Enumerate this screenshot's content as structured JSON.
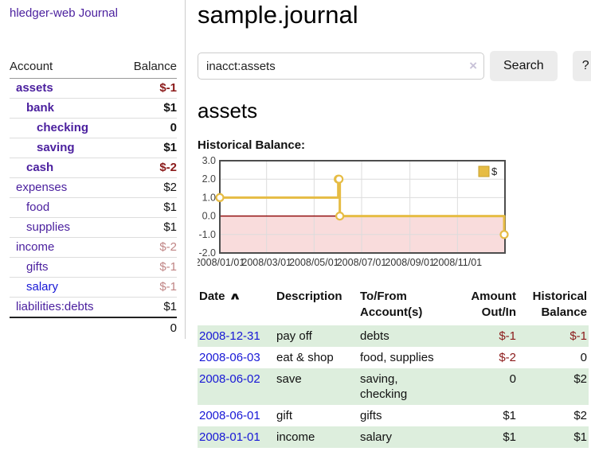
{
  "colors": {
    "accent_purple": "#4a1f9e",
    "link_blue": "#1717d6",
    "negative_strong": "#8b1a1a",
    "negative_light": "#c08585",
    "row_green": "#ddeedd",
    "chart_gold": "#e6bc44",
    "chart_negative_fill": "#f9dcdc",
    "chart_zero_line": "#8b0000",
    "button_grey": "#ececec"
  },
  "app": {
    "brand": "hledger-web"
  },
  "sidebar": {
    "journal_link": "Journal",
    "header": {
      "account": "Account",
      "balance": "Balance"
    },
    "accounts": [
      {
        "name": "assets",
        "balance": "$-1",
        "indent": 0,
        "name_style": "strong",
        "balance_style": "neg-strong"
      },
      {
        "name": "bank",
        "balance": "$1",
        "indent": 1,
        "name_style": "strong",
        "balance_style": "pos-strong"
      },
      {
        "name": "checking",
        "balance": "0",
        "indent": 2,
        "name_style": "strong",
        "balance_style": "pos-strong"
      },
      {
        "name": "saving",
        "balance": "$1",
        "indent": 2,
        "name_style": "strong",
        "balance_style": "pos-strong"
      },
      {
        "name": "cash",
        "balance": "$-2",
        "indent": 1,
        "name_style": "strong",
        "balance_style": "neg-strong"
      },
      {
        "name": "expenses",
        "balance": "$2",
        "indent": 0,
        "name_style": "normal",
        "balance_style": "plain"
      },
      {
        "name": "food",
        "balance": "$1",
        "indent": 1,
        "name_style": "normal",
        "balance_style": "plain"
      },
      {
        "name": "supplies",
        "balance": "$1",
        "indent": 1,
        "name_style": "normal",
        "balance_style": "plain"
      },
      {
        "name": "income",
        "balance": "$-2",
        "indent": 0,
        "name_style": "normal",
        "balance_style": "neg-light"
      },
      {
        "name": "gifts",
        "balance": "$-1",
        "indent": 1,
        "name_style": "normal",
        "balance_style": "neg-light"
      },
      {
        "name": "salary",
        "balance": "$-1",
        "indent": 1,
        "name_style": "blue",
        "balance_style": "neg-light"
      },
      {
        "name": "liabilities:debts",
        "balance": "$1",
        "indent": 0,
        "name_style": "normal",
        "balance_style": "plain"
      }
    ],
    "total": "0"
  },
  "main": {
    "title": "sample.journal",
    "search": {
      "value": "inacct:assets",
      "clear_icon": "×",
      "button_label": "Search",
      "help_label": "?"
    },
    "account_heading": "assets",
    "chart_heading": "Historical Balance:"
  },
  "chart_data": {
    "type": "line",
    "step": true,
    "title": "Historical Balance:",
    "x_range": [
      "2008-01-01",
      "2009-01-01"
    ],
    "x_tick_dates": [
      "2008-01-01",
      "2008-03-01",
      "2008-05-01",
      "2008-07-01",
      "2008-09-01",
      "2008-11-01"
    ],
    "x_tick_labels": [
      "2008/01/01",
      "2008/03/01",
      "2008/05/01",
      "2008/07/01",
      "2008/09/01",
      "2008/11/01"
    ],
    "y_ticks": [
      3.0,
      2.0,
      1.0,
      0.0,
      -1.0,
      -2.0
    ],
    "ylim": [
      -2,
      3
    ],
    "grid": true,
    "legend": {
      "position": "top-right",
      "label": "$"
    },
    "series": [
      {
        "name": "$",
        "points": [
          {
            "date": "2008-01-01",
            "value": 1
          },
          {
            "date": "2008-06-01",
            "value": 2
          },
          {
            "date": "2008-06-02",
            "value": 2
          },
          {
            "date": "2008-06-03",
            "value": 0
          },
          {
            "date": "2008-12-31",
            "value": -1
          }
        ]
      }
    ]
  },
  "register": {
    "headers": {
      "date": "Date",
      "sort_icon": "∧",
      "description": "Description",
      "accounts": "To/From Account(s)",
      "amount": "Amount Out/In",
      "balance": "Historical Balance"
    },
    "rows": [
      {
        "date": "2008-12-31",
        "description": "pay off",
        "accounts": "debts",
        "amount": "$-1",
        "amount_negative": true,
        "balance": "$-1",
        "balance_negative": true
      },
      {
        "date": "2008-06-03",
        "description": "eat & shop",
        "accounts": "food, supplies",
        "amount": "$-2",
        "amount_negative": true,
        "balance": "0",
        "balance_negative": false
      },
      {
        "date": "2008-06-02",
        "description": "save",
        "accounts": "saving, checking",
        "amount": "0",
        "amount_negative": false,
        "balance": "$2",
        "balance_negative": false
      },
      {
        "date": "2008-06-01",
        "description": "gift",
        "accounts": "gifts",
        "amount": "$1",
        "amount_negative": false,
        "balance": "$2",
        "balance_negative": false
      },
      {
        "date": "2008-01-01",
        "description": "income",
        "accounts": "salary",
        "amount": "$1",
        "amount_negative": false,
        "balance": "$1",
        "balance_negative": false
      }
    ]
  }
}
